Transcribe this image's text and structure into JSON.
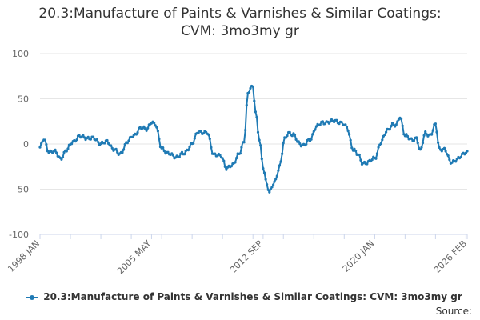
{
  "chart_data": {
    "type": "line",
    "title_line1": "20.3:Manufacture of Paints & Varnishes & Similar Coatings:",
    "title_line2": "CVM: 3mo3my gr",
    "ylim": [
      -100,
      100
    ],
    "y_ticks": [
      100,
      50,
      0,
      -50,
      -100
    ],
    "x_ticks": [
      "1998 JAN",
      "2005 MAY",
      "2012 SEP",
      "2020 JAN",
      "2026 FEB"
    ],
    "grid": "horizontal",
    "legend_position": "bottom",
    "series": [
      {
        "name": "20.3:Manufacture of Paints & Varnishes & Similar Coatings: CVM: 3mo3my gr",
        "color": "#1f7ab4",
        "points": [
          [
            "1998-01",
            -4
          ],
          [
            "1998-04",
            5
          ],
          [
            "1998-08",
            -8
          ],
          [
            "1999-01",
            -9
          ],
          [
            "1999-05",
            -16
          ],
          [
            "1999-10",
            -7
          ],
          [
            "2000-03",
            3
          ],
          [
            "2000-08",
            8
          ],
          [
            "2001-02",
            7
          ],
          [
            "2001-07",
            6
          ],
          [
            "2002-01",
            1
          ],
          [
            "2002-06",
            2
          ],
          [
            "2002-11",
            -5
          ],
          [
            "2003-04",
            -12
          ],
          [
            "2003-10",
            3
          ],
          [
            "2004-03",
            9
          ],
          [
            "2004-08",
            18
          ],
          [
            "2005-01",
            16
          ],
          [
            "2005-05",
            25
          ],
          [
            "2005-08",
            21
          ],
          [
            "2006-01",
            -4
          ],
          [
            "2006-06",
            -11
          ],
          [
            "2007-01",
            -14
          ],
          [
            "2007-06",
            -11
          ],
          [
            "2008-01",
            0
          ],
          [
            "2008-06",
            14
          ],
          [
            "2009-01",
            12
          ],
          [
            "2009-06",
            -11
          ],
          [
            "2009-12",
            -14
          ],
          [
            "2010-04",
            -26
          ],
          [
            "2010-09",
            -24
          ],
          [
            "2011-02",
            -10
          ],
          [
            "2011-06",
            2
          ],
          [
            "2011-09",
            55
          ],
          [
            "2011-11",
            63
          ],
          [
            "2012-01",
            64
          ],
          [
            "2012-03",
            35
          ],
          [
            "2012-06",
            5
          ],
          [
            "2012-09",
            -25
          ],
          [
            "2012-12",
            -45
          ],
          [
            "2013-02",
            -54
          ],
          [
            "2013-06",
            -42
          ],
          [
            "2013-10",
            -25
          ],
          [
            "2014-02",
            5
          ],
          [
            "2014-05",
            13
          ],
          [
            "2014-09",
            10
          ],
          [
            "2015-01",
            1
          ],
          [
            "2015-05",
            -1
          ],
          [
            "2015-10",
            4
          ],
          [
            "2016-03",
            20
          ],
          [
            "2016-08",
            23
          ],
          [
            "2017-01",
            25
          ],
          [
            "2017-06",
            25
          ],
          [
            "2017-11",
            24
          ],
          [
            "2018-03",
            18
          ],
          [
            "2018-08",
            -5
          ],
          [
            "2018-12",
            -12
          ],
          [
            "2019-03",
            -21
          ],
          [
            "2019-08",
            -20
          ],
          [
            "2020-01",
            -16
          ],
          [
            "2020-06",
            2
          ],
          [
            "2020-11",
            15
          ],
          [
            "2021-03",
            22
          ],
          [
            "2021-06",
            20
          ],
          [
            "2021-09",
            30
          ],
          [
            "2022-01",
            10
          ],
          [
            "2022-06",
            4
          ],
          [
            "2022-10",
            7
          ],
          [
            "2023-01",
            -8
          ],
          [
            "2023-05",
            12
          ],
          [
            "2023-09",
            10
          ],
          [
            "2024-01",
            21
          ],
          [
            "2024-04",
            -5
          ],
          [
            "2024-08",
            -6
          ],
          [
            "2025-01",
            -20
          ],
          [
            "2025-06",
            -17
          ],
          [
            "2026-02",
            -8
          ]
        ]
      }
    ]
  },
  "legend": {
    "label": "20.3:Manufacture of Paints & Varnishes & Similar Coatings: CVM: 3mo3my gr"
  },
  "footer": {
    "source_label": "Source:"
  }
}
